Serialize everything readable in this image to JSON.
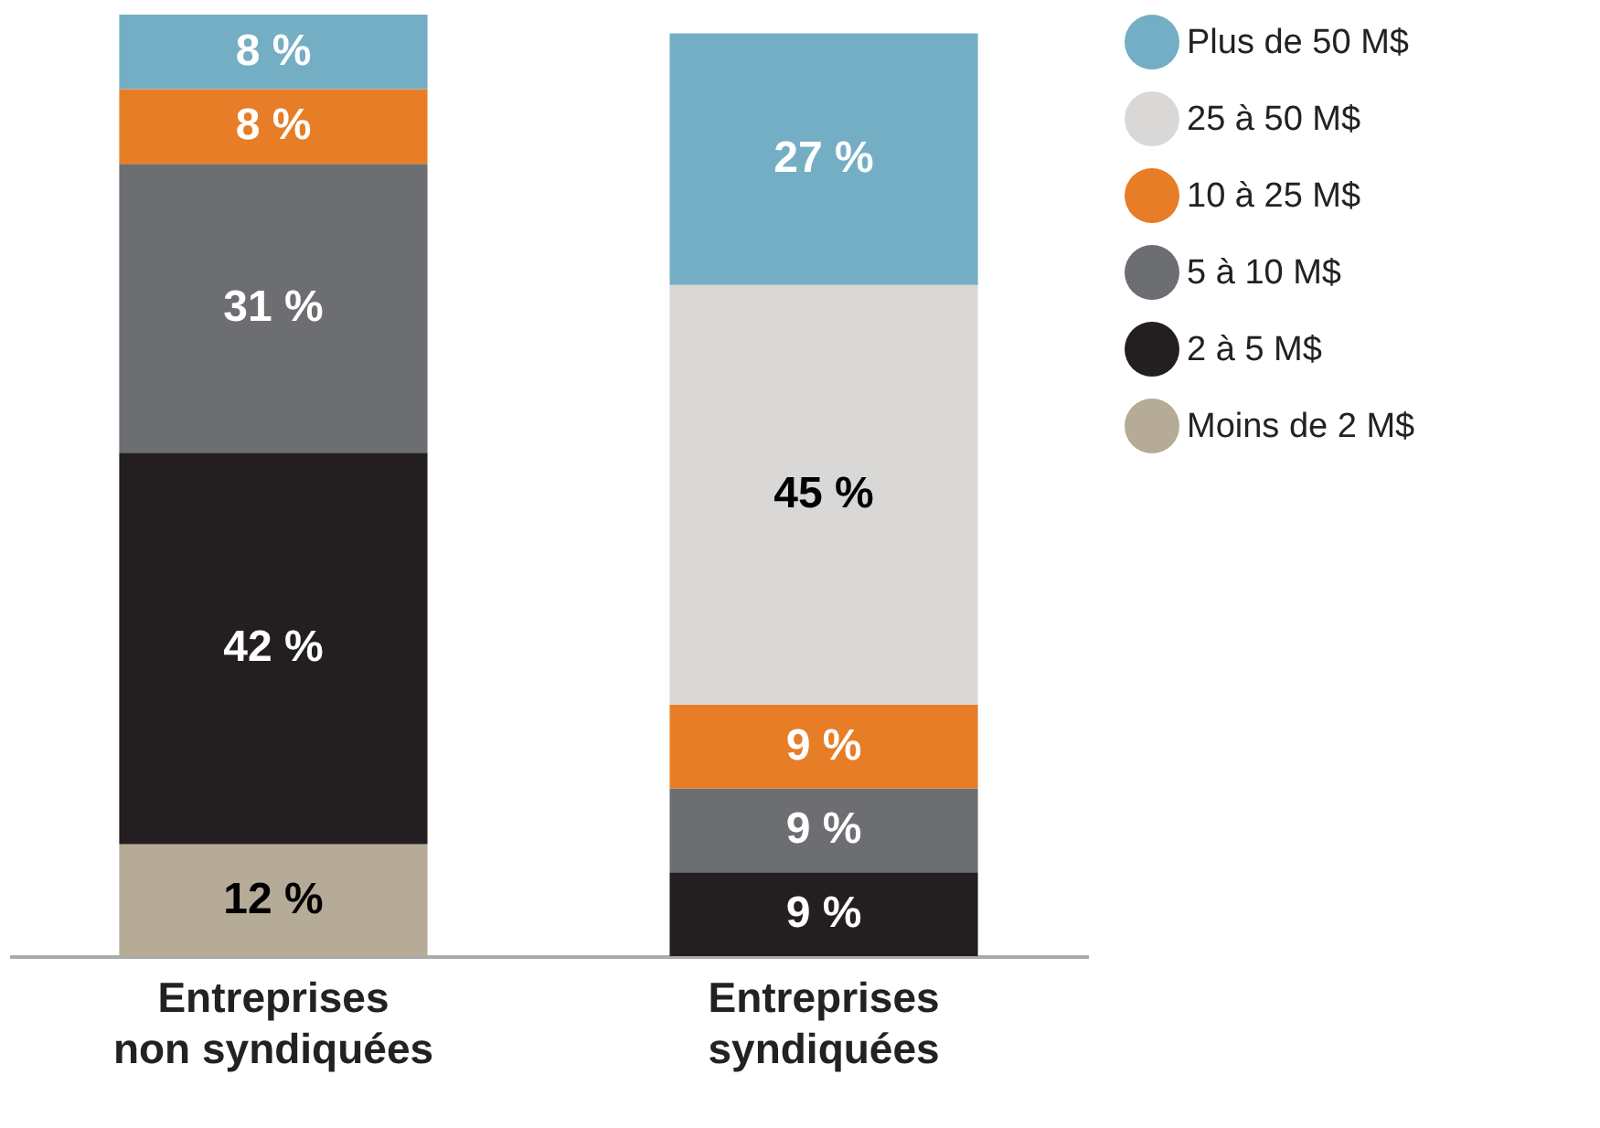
{
  "chart_data": {
    "type": "bar",
    "stacked": true,
    "categories": [
      "Entreprises non syndiquées",
      "Entreprises syndiquées"
    ],
    "series": [
      {
        "name": "Moins de 2 M$",
        "color": "#b5ab96",
        "values": [
          12,
          null
        ],
        "value_labels": [
          "12 %",
          null
        ]
      },
      {
        "name": "2 à 5 M$",
        "color": "#231f20",
        "values": [
          42,
          9
        ],
        "value_labels": [
          "42 %",
          "9 %"
        ]
      },
      {
        "name": "5 à 10 M$",
        "color": "#6d6e71",
        "values": [
          31,
          9
        ],
        "value_labels": [
          "31 %",
          "9 %"
        ]
      },
      {
        "name": "10 à 25 M$",
        "color": "#e87d27",
        "values": [
          8,
          9
        ],
        "value_labels": [
          "8 %",
          "9 %"
        ]
      },
      {
        "name": "25 à 50 M$",
        "color": "#d9d8d6",
        "values": [
          null,
          45
        ],
        "value_labels": [
          null,
          "45 %"
        ]
      },
      {
        "name": "Plus de 50 M$",
        "color": "#74aec4",
        "values": [
          8,
          27
        ],
        "value_labels": [
          "8 %",
          "27 %"
        ]
      }
    ],
    "legend": "top right"
  }
}
